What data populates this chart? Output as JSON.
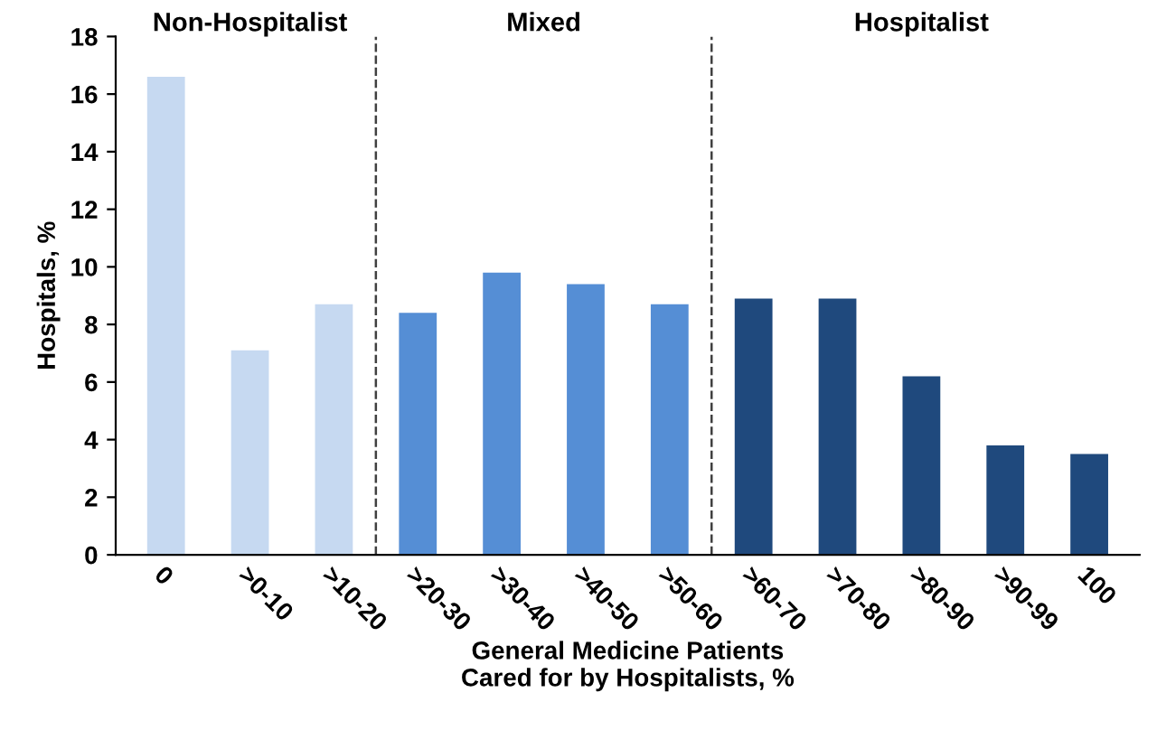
{
  "chart_data": {
    "type": "bar",
    "xlabel": "General Medicine Patients\nCared for by Hospitalists, %",
    "ylabel": "Hospitals, %",
    "categories": [
      "0",
      ">0-10",
      ">10-20",
      ">20-30",
      ">30-40",
      ">40-50",
      ">50-60",
      ">60-70",
      ">70-80",
      ">80-90",
      ">90-99",
      "100"
    ],
    "values": [
      16.6,
      7.1,
      8.7,
      8.4,
      9.8,
      9.4,
      8.7,
      8.9,
      8.9,
      6.2,
      3.8,
      3.5
    ],
    "colors": [
      "#c6d9f1",
      "#c6d9f1",
      "#c6d9f1",
      "#558ed5",
      "#558ed5",
      "#558ed5",
      "#558ed5",
      "#1f497d",
      "#1f497d",
      "#1f497d",
      "#1f497d",
      "#1f497d"
    ],
    "ylim": [
      0,
      18
    ],
    "yticks": [
      0,
      2,
      4,
      6,
      8,
      10,
      12,
      14,
      16,
      18
    ],
    "grid": false,
    "annotations": [
      "Non-Hospitalist",
      "Mixed",
      "Hospitalist"
    ]
  }
}
